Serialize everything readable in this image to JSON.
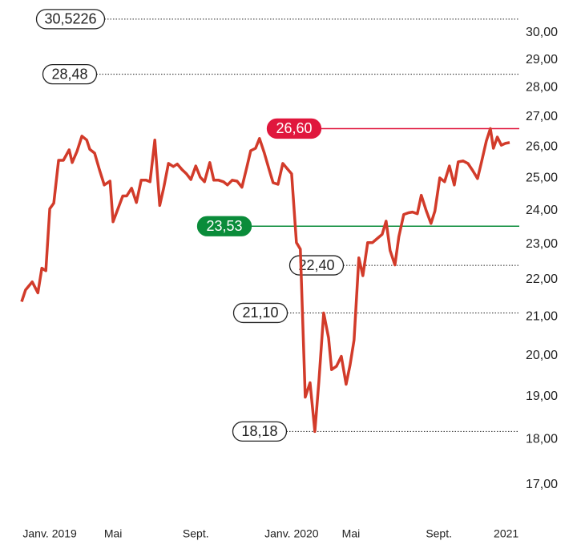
{
  "chart_data": {
    "type": "line",
    "log_scale": true,
    "x": [
      -6.4,
      -5.5,
      -4.0,
      -2.7,
      -1.8,
      -0.9,
      0,
      0.9,
      2.0,
      3.1,
      4.4,
      5.1,
      6.2,
      7.3,
      8.4,
      9.1,
      10.2,
      11.3,
      12.4,
      13.7,
      14.4,
      15.5,
      16.6,
      17.5,
      18.6,
      19.7,
      20.8,
      21.9,
      22.8,
      23.9,
      25.0,
      25.9,
      27.0,
      28.1,
      29.0,
      30.1,
      31.1,
      32.1,
      33.2,
      34.2,
      35.2,
      36.4,
      37.3,
      38.4,
      39.5,
      40.4,
      41.5,
      42.6,
      43.7,
      44.8,
      45.7,
      46.8,
      47.7,
      48.8,
      49.9,
      50.8,
      51.9,
      53.0,
      53.9,
      55.0,
      56.1,
      57.0,
      58.1,
      59.2,
      60.3,
      61.2,
      62.3,
      63.4,
      64.1,
      65.2,
      66.3,
      67.4,
      68.3,
      69.2,
      70.3,
      71.2,
      72.3,
      73.4,
      74.5,
      75.6,
      76.5,
      77.4,
      78.5,
      79.4,
      80.5,
      81.6,
      82.5,
      83.6,
      84.5,
      85.6,
      86.7,
      87.6,
      88.7,
      89.8,
      90.9,
      92.0,
      92.9,
      94.0,
      95.1,
      96.2,
      97.3,
      98.2,
      99.3,
      100.2,
      100.9,
      101.8,
      102.7,
      103.6,
      104.6
    ],
    "series": [
      {
        "color": "#d23b2a",
        "values": [
          21.4,
          21.72,
          21.94,
          21.64,
          22.32,
          22.25,
          24.05,
          24.22,
          25.56,
          25.56,
          25.9,
          25.49,
          25.85,
          26.35,
          26.22,
          25.92,
          25.79,
          25.26,
          24.78,
          24.9,
          23.66,
          24.05,
          24.44,
          24.44,
          24.68,
          24.24,
          24.93,
          24.93,
          24.88,
          26.22,
          24.15,
          24.68,
          25.46,
          25.36,
          25.44,
          25.26,
          25.13,
          24.95,
          25.38,
          25.03,
          24.88,
          25.49,
          24.93,
          24.93,
          24.88,
          24.78,
          24.93,
          24.9,
          24.71,
          25.33,
          25.87,
          25.95,
          26.27,
          25.79,
          25.26,
          24.85,
          24.8,
          25.46,
          25.31,
          25.13,
          23.05,
          22.86,
          18.98,
          19.33,
          18.18,
          19.35,
          21.1,
          20.45,
          19.65,
          19.73,
          19.98,
          19.29,
          19.76,
          20.39,
          22.61,
          22.11,
          23.05,
          23.05,
          23.17,
          23.29,
          23.68,
          22.82,
          22.41,
          23.22,
          23.88,
          23.93,
          23.95,
          23.9,
          24.46,
          24.0,
          23.61,
          23.98,
          25.0,
          24.88,
          25.38,
          24.78,
          25.51,
          25.54,
          25.46,
          25.23,
          24.98,
          25.51,
          26.19,
          26.6,
          25.95,
          26.32,
          26.05,
          26.11,
          26.14
        ]
      }
    ],
    "xlim": [
      -6.4,
      104.6
    ],
    "xticks": [
      {
        "value": 0,
        "label": "Janv. 2019"
      },
      {
        "value": 14.4,
        "label": "Mai"
      },
      {
        "value": 33.2,
        "label": "Sept."
      },
      {
        "value": 55.0,
        "label": "Janv. 2020"
      },
      {
        "value": 68.5,
        "label": "Mai"
      },
      {
        "value": 88.5,
        "label": "Sept."
      },
      {
        "value": 103.8,
        "label": "2021"
      }
    ],
    "ylim": [
      17,
      30
    ],
    "yticks": [
      {
        "value": 30,
        "label": "30,00"
      },
      {
        "value": 29,
        "label": "29,00"
      },
      {
        "value": 28,
        "label": "28,00"
      },
      {
        "value": 27,
        "label": "27,00"
      },
      {
        "value": 26,
        "label": "26,00"
      },
      {
        "value": 25,
        "label": "25,00"
      },
      {
        "value": 24,
        "label": "24,00"
      },
      {
        "value": 23,
        "label": "23,00"
      },
      {
        "value": 22,
        "label": "22,00"
      },
      {
        "value": 21,
        "label": "21,00"
      },
      {
        "value": 20,
        "label": "20,00"
      },
      {
        "value": 19,
        "label": "19,00"
      },
      {
        "value": 18,
        "label": "18,00"
      },
      {
        "value": 17,
        "label": "17,00"
      }
    ],
    "reference_lines": [
      {
        "value": 30.5226,
        "label": "30,5226",
        "color": "#222222",
        "filled": false
      },
      {
        "value": 28.48,
        "label": "28,48",
        "color": "#222222",
        "filled": false
      },
      {
        "value": 26.6,
        "label": "26,60",
        "color": "#e0173d",
        "filled": true
      },
      {
        "value": 23.53,
        "label": "23,53",
        "color": "#0a8c3a",
        "filled": true
      },
      {
        "value": 22.4,
        "label": "22,40",
        "color": "#222222",
        "filled": false
      },
      {
        "value": 21.1,
        "label": "21,10",
        "color": "#222222",
        "filled": false
      },
      {
        "value": 18.18,
        "label": "18,18",
        "color": "#222222",
        "filled": false
      }
    ]
  }
}
